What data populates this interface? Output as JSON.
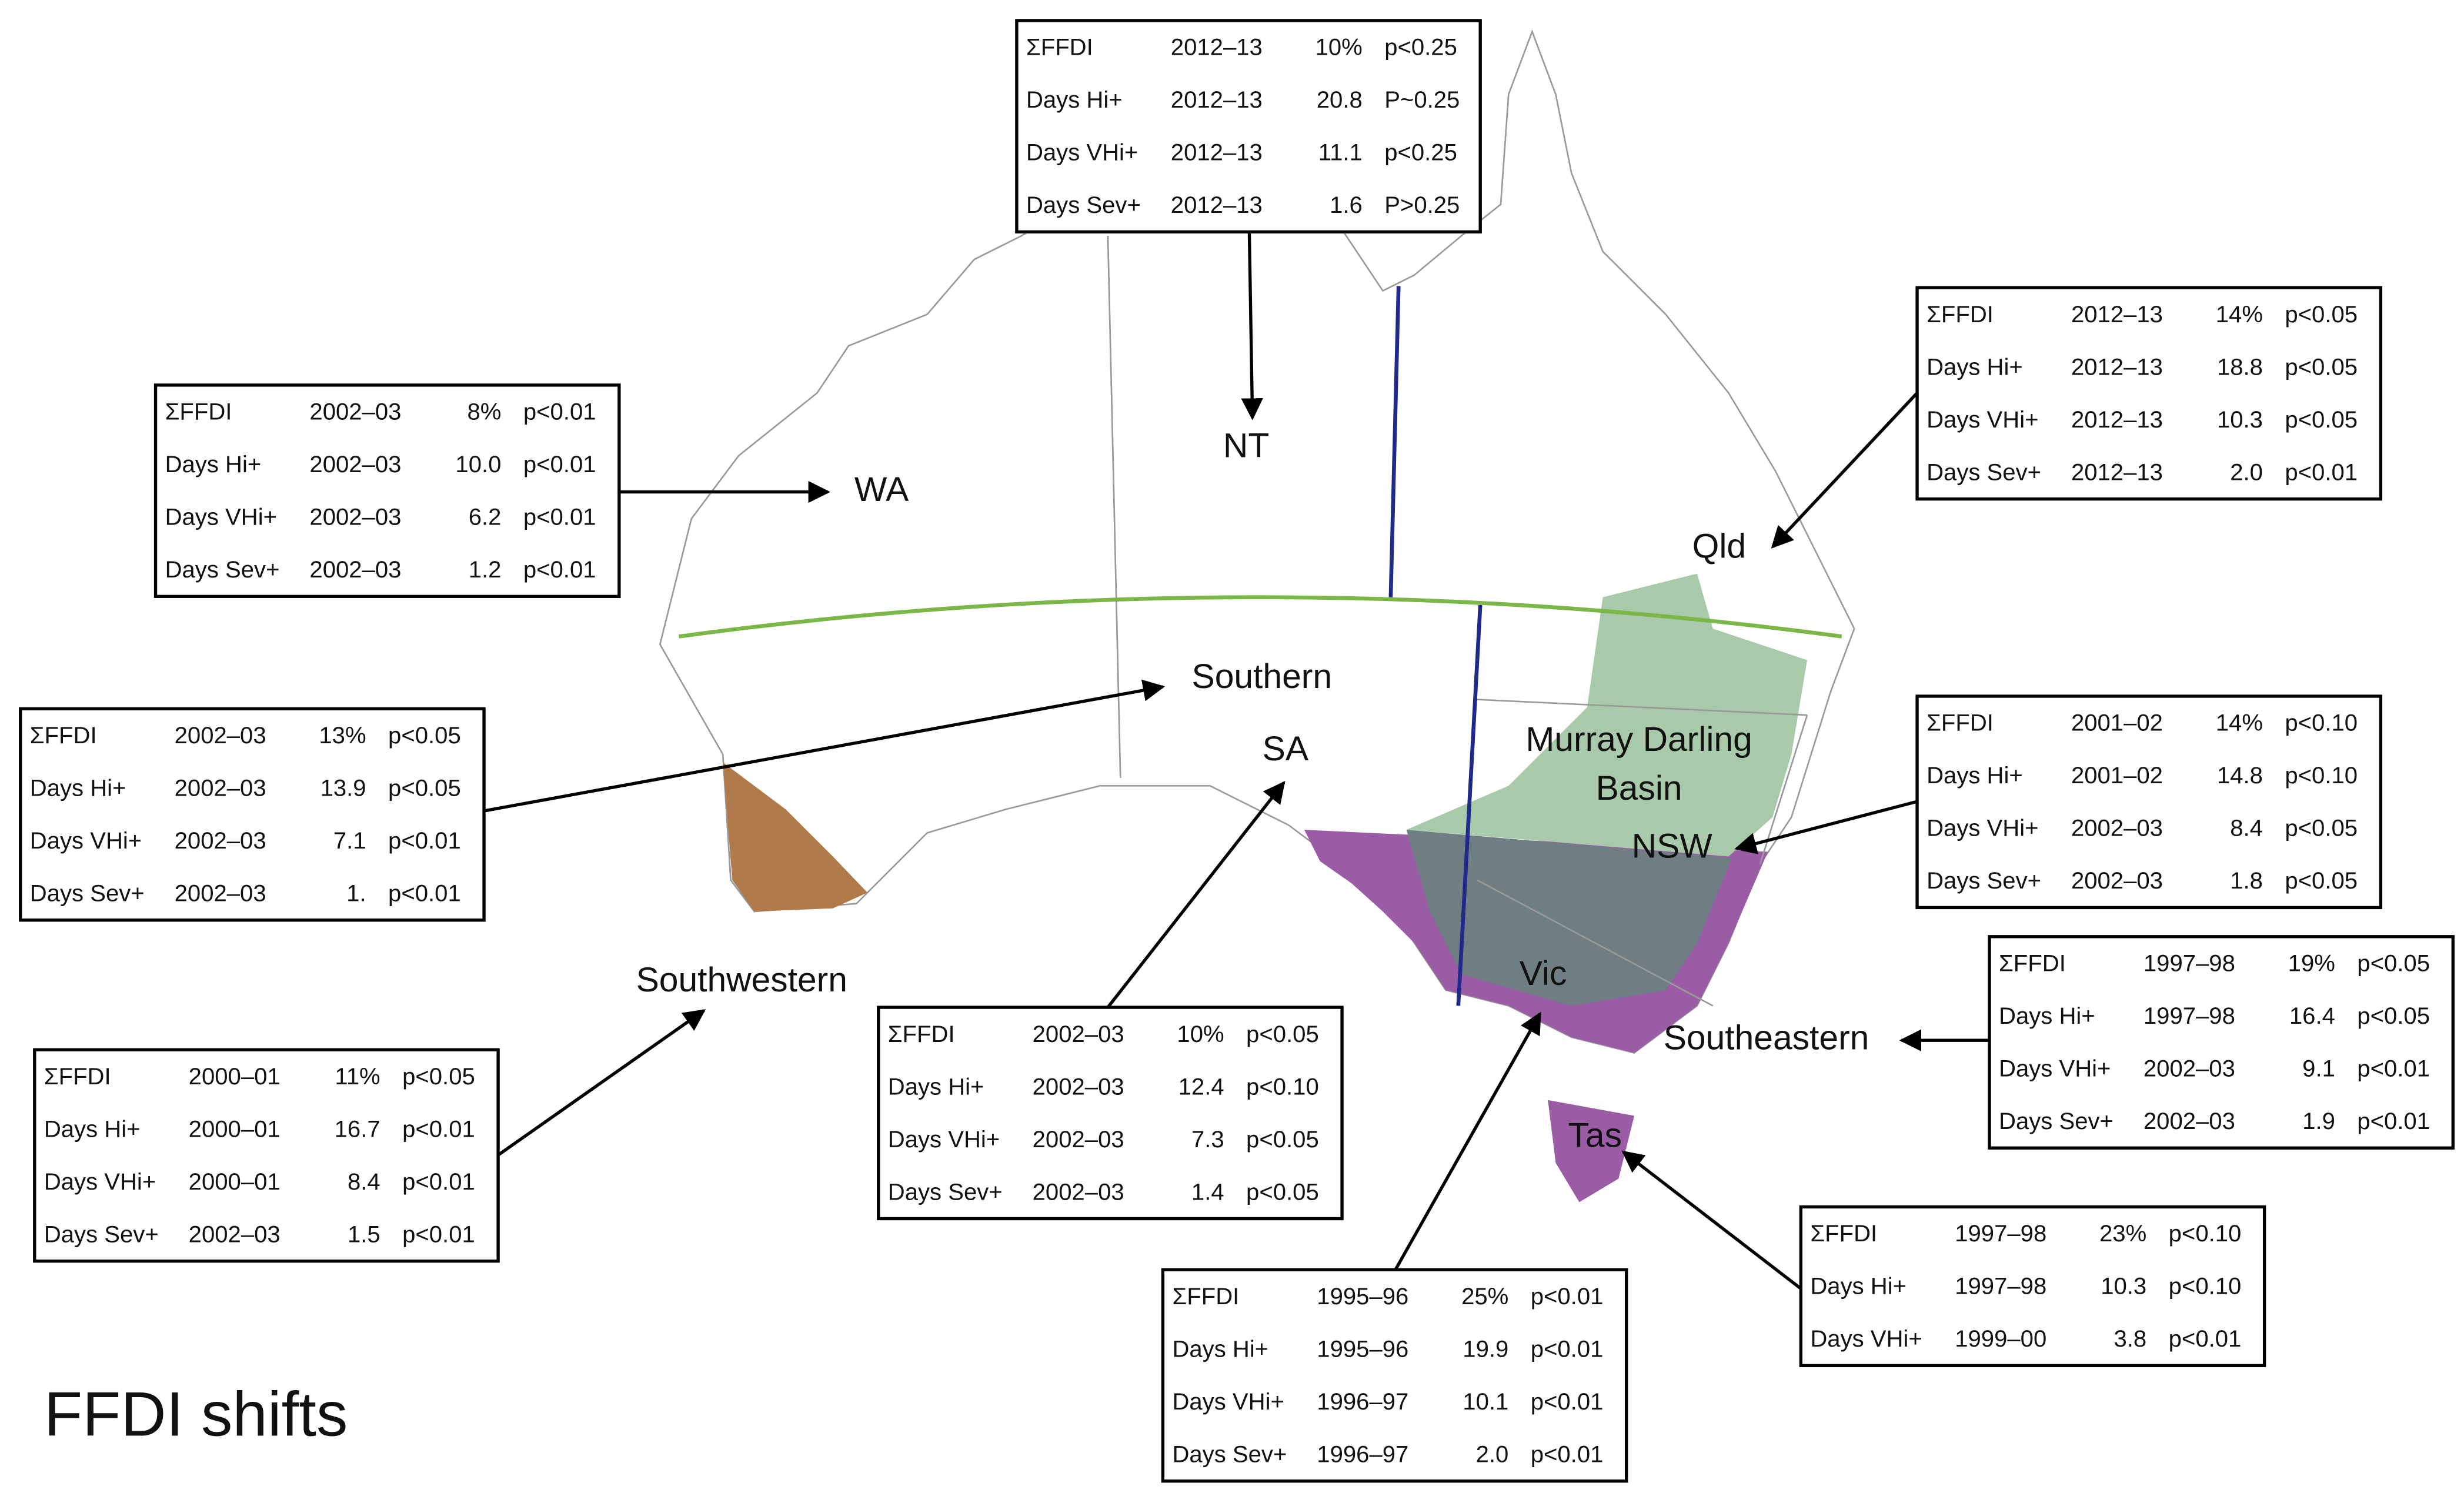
{
  "title": "FFDI shifts",
  "labels": [
    "WA",
    "NT",
    "Qld",
    "Southern",
    "SA",
    "Murray Darling",
    "Basin",
    "NSW",
    "Vic",
    "Southeastern",
    "Tas",
    "Southwestern"
  ],
  "tables": [
    {
      "rows": [
        [
          "ΣFFDI",
          "2012–13",
          "10%",
          "p<0.25"
        ],
        [
          "Days Hi+",
          "2012–13",
          "20.8",
          "P~0.25"
        ],
        [
          "Days VHi+",
          "2012–13",
          "11.1",
          "p<0.25"
        ],
        [
          "Days Sev+",
          "2012–13",
          "1.6",
          "P>0.25"
        ]
      ]
    },
    {
      "rows": [
        [
          "ΣFFDI",
          "2002–03",
          "8%",
          "p<0.01"
        ],
        [
          "Days Hi+",
          "2002–03",
          "10.0",
          "p<0.01"
        ],
        [
          "Days VHi+",
          "2002–03",
          "6.2",
          "p<0.01"
        ],
        [
          "Days Sev+",
          "2002–03",
          "1.2",
          "p<0.01"
        ]
      ]
    },
    {
      "rows": [
        [
          "ΣFFDI",
          "2012–13",
          "14%",
          "p<0.05"
        ],
        [
          "Days Hi+",
          "2012–13",
          "18.8",
          "p<0.05"
        ],
        [
          "Days VHi+",
          "2012–13",
          "10.3",
          "p<0.05"
        ],
        [
          "Days Sev+",
          "2012–13",
          "2.0",
          "p<0.01"
        ]
      ]
    },
    {
      "rows": [
        [
          "ΣFFDI",
          "2002–03",
          "13%",
          "p<0.05"
        ],
        [
          "Days Hi+",
          "2002–03",
          "13.9",
          "p<0.05"
        ],
        [
          "Days VHi+",
          "2002–03",
          "7.1",
          "p<0.01"
        ],
        [
          "Days Sev+",
          "2002–03",
          "1.",
          "p<0.01"
        ]
      ]
    },
    {
      "rows": [
        [
          "ΣFFDI",
          "2001–02",
          "14%",
          "p<0.10"
        ],
        [
          "Days Hi+",
          "2001–02",
          "14.8",
          "p<0.10"
        ],
        [
          "Days VHi+",
          "2002–03",
          "8.4",
          "p<0.05"
        ],
        [
          "Days Sev+",
          "2002–03",
          "1.8",
          "p<0.05"
        ]
      ]
    },
    {
      "rows": [
        [
          "ΣFFDI",
          "1997–98",
          "19%",
          "p<0.05"
        ],
        [
          "Days Hi+",
          "1997–98",
          "16.4",
          "p<0.05"
        ],
        [
          "Days VHi+",
          "2002–03",
          "9.1",
          "p<0.01"
        ],
        [
          "Days Sev+",
          "2002–03",
          "1.9",
          "p<0.01"
        ]
      ]
    },
    {
      "rows": [
        [
          "ΣFFDI",
          "2002–03",
          "10%",
          "p<0.05"
        ],
        [
          "Days Hi+",
          "2002–03",
          "12.4",
          "p<0.10"
        ],
        [
          "Days VHi+",
          "2002–03",
          "7.3",
          "p<0.05"
        ],
        [
          "Days Sev+",
          "2002–03",
          "1.4",
          "p<0.05"
        ]
      ]
    },
    {
      "rows": [
        [
          "ΣFFDI",
          "2000–01",
          "11%",
          "p<0.05"
        ],
        [
          "Days Hi+",
          "2000–01",
          "16.7",
          "p<0.01"
        ],
        [
          "Days VHi+",
          "2000–01",
          "8.4",
          "p<0.01"
        ],
        [
          "Days Sev+",
          "2002–03",
          "1.5",
          "p<0.01"
        ]
      ]
    },
    {
      "rows": [
        [
          "ΣFFDI",
          "1997–98",
          "23%",
          "p<0.10"
        ],
        [
          "Days Hi+",
          "1997–98",
          "10.3",
          "p<0.10"
        ],
        [
          "Days VHi+",
          "1999–00",
          "3.8",
          "p<0.01"
        ]
      ]
    },
    {
      "rows": [
        [
          "ΣFFDI",
          "1995–96",
          "25%",
          "p<0.01"
        ],
        [
          "Days Hi+",
          "1995–96",
          "19.9",
          "p<0.01"
        ],
        [
          "Days VHi+",
          "1996–97",
          "10.1",
          "p<0.01"
        ],
        [
          "Days Sev+",
          "1996–97",
          "2.0",
          "p<0.01"
        ]
      ]
    }
  ]
}
